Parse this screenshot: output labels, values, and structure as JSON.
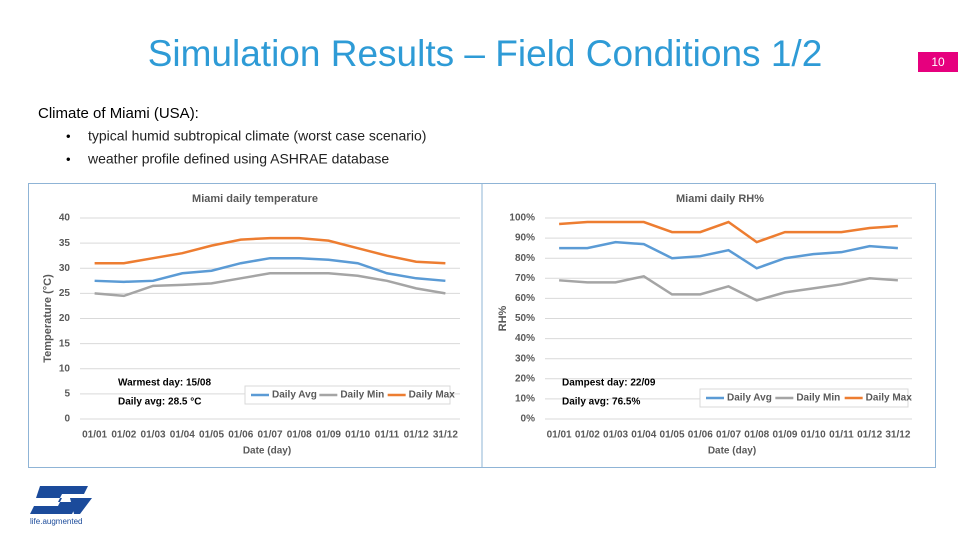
{
  "slide": {
    "title": "Simulation Results – Field Conditions 1/2",
    "page_number": "10",
    "intro": "Climate of Miami (USA):",
    "bullets": [
      "typical humid subtropical climate (worst case scenario)",
      "weather profile defined using ASHRAE database"
    ]
  },
  "logo": {
    "text": "life.augmented"
  },
  "chart_data": [
    {
      "type": "line",
      "title": "Miami daily temperature",
      "x_label": "Date (day)",
      "y_label": "Temperature (°C)",
      "categories": [
        "01/01",
        "01/02",
        "01/03",
        "01/04",
        "01/05",
        "01/06",
        "01/07",
        "01/08",
        "01/09",
        "01/10",
        "01/11",
        "01/12",
        "31/12"
      ],
      "series": [
        {
          "name": "Daily Avg",
          "color": "#5b9bd5",
          "values": [
            27.5,
            27.3,
            27.5,
            29,
            29.5,
            31,
            32,
            32,
            31.7,
            31,
            29,
            28,
            27.5
          ]
        },
        {
          "name": "Daily Min",
          "color": "#a5a5a5",
          "values": [
            25,
            24.5,
            26.5,
            26.7,
            27,
            28,
            29,
            29,
            29,
            28.5,
            27.5,
            26,
            25
          ]
        },
        {
          "name": "Daily Max",
          "color": "#ed7d31",
          "values": [
            31,
            31,
            32,
            33,
            34.5,
            35.7,
            36,
            36,
            35.5,
            34,
            32.5,
            31.3,
            31
          ]
        }
      ],
      "ylim": [
        0,
        40
      ],
      "yticks": [
        0,
        5,
        10,
        15,
        20,
        25,
        30,
        35,
        40
      ],
      "grid": true,
      "annotations": [
        "Warmest day: 15/08",
        "Daily avg: 28.5 °C"
      ]
    },
    {
      "type": "line",
      "title": "Miami daily RH%",
      "x_label": "Date (day)",
      "y_label": "RH%",
      "categories": [
        "01/01",
        "01/02",
        "01/03",
        "01/04",
        "01/05",
        "01/06",
        "01/07",
        "01/08",
        "01/09",
        "01/10",
        "01/11",
        "01/12",
        "31/12"
      ],
      "series": [
        {
          "name": "Daily Avg",
          "color": "#5b9bd5",
          "values": [
            85,
            85,
            88,
            87,
            80,
            81,
            84,
            75,
            80,
            82,
            83,
            86,
            85
          ]
        },
        {
          "name": "Daily Min",
          "color": "#a5a5a5",
          "values": [
            69,
            68,
            68,
            71,
            62,
            62,
            66,
            59,
            63,
            65,
            67,
            70,
            69
          ]
        },
        {
          "name": "Daily Max",
          "color": "#ed7d31",
          "values": [
            97,
            98,
            98,
            98,
            93,
            93,
            98,
            88,
            93,
            93,
            93,
            95,
            96
          ]
        }
      ],
      "ylim": [
        0,
        100
      ],
      "yticks": [
        {
          "value": 0,
          "label": "0%"
        },
        {
          "value": 10,
          "label": "10%"
        },
        {
          "value": 20,
          "label": "20%"
        },
        {
          "value": 30,
          "label": "30%"
        },
        {
          "value": 40,
          "label": "40%"
        },
        {
          "value": 50,
          "label": "50%"
        },
        {
          "value": 60,
          "label": "60%"
        },
        {
          "value": 70,
          "label": "70%"
        },
        {
          "value": 80,
          "label": "80%"
        },
        {
          "value": 90,
          "label": "90%"
        },
        {
          "value": 100,
          "label": "100%"
        }
      ],
      "grid": true,
      "annotations": [
        "Dampest day: 22/09",
        "Daily avg: 76.5%"
      ]
    }
  ]
}
